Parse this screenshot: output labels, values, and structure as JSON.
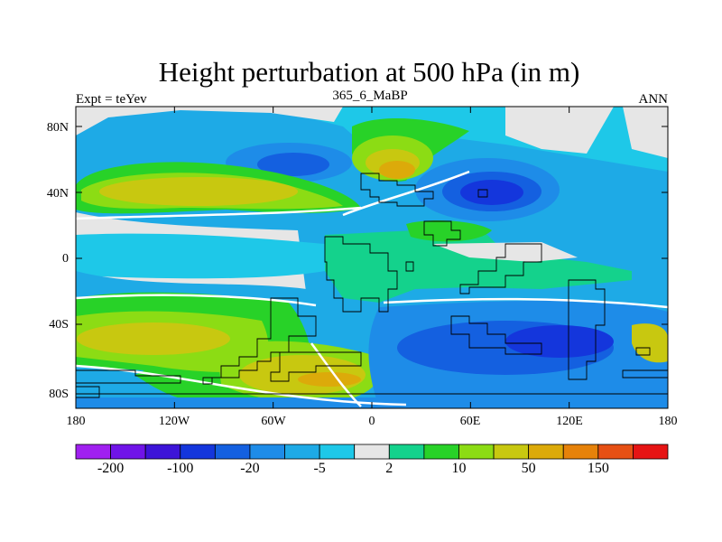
{
  "title": "Height perturbation at 500 hPa (in m)",
  "left_subtitle": "Expt = teYev",
  "center_subtitle": "365_6_MaBP",
  "right_subtitle": "ANN",
  "x_ticks": [
    "180",
    "120W",
    "60W",
    "0",
    "60E",
    "120E",
    "180"
  ],
  "y_ticks": [
    "80N",
    "40N",
    "0",
    "40S",
    "80S"
  ],
  "colorbar": {
    "colors": [
      "#a020f0",
      "#7014e8",
      "#3d14d8",
      "#1436dc",
      "#1460e0",
      "#1e8ce8",
      "#1eaae6",
      "#1ec8e8",
      "#e6e6e6",
      "#14d28c",
      "#28d228",
      "#8cdc14",
      "#c8c810",
      "#dcaa0a",
      "#e6820a",
      "#e65014",
      "#e61414"
    ],
    "labels": [
      {
        "text": "-200",
        "boundary": 1
      },
      {
        "text": "-100",
        "boundary": 3
      },
      {
        "text": "-20",
        "boundary": 5
      },
      {
        "text": "-5",
        "boundary": 7
      },
      {
        "text": "2",
        "boundary": 9
      },
      {
        "text": "10",
        "boundary": 11
      },
      {
        "text": "50",
        "boundary": 13
      },
      {
        "text": "150",
        "boundary": 15
      }
    ]
  }
}
